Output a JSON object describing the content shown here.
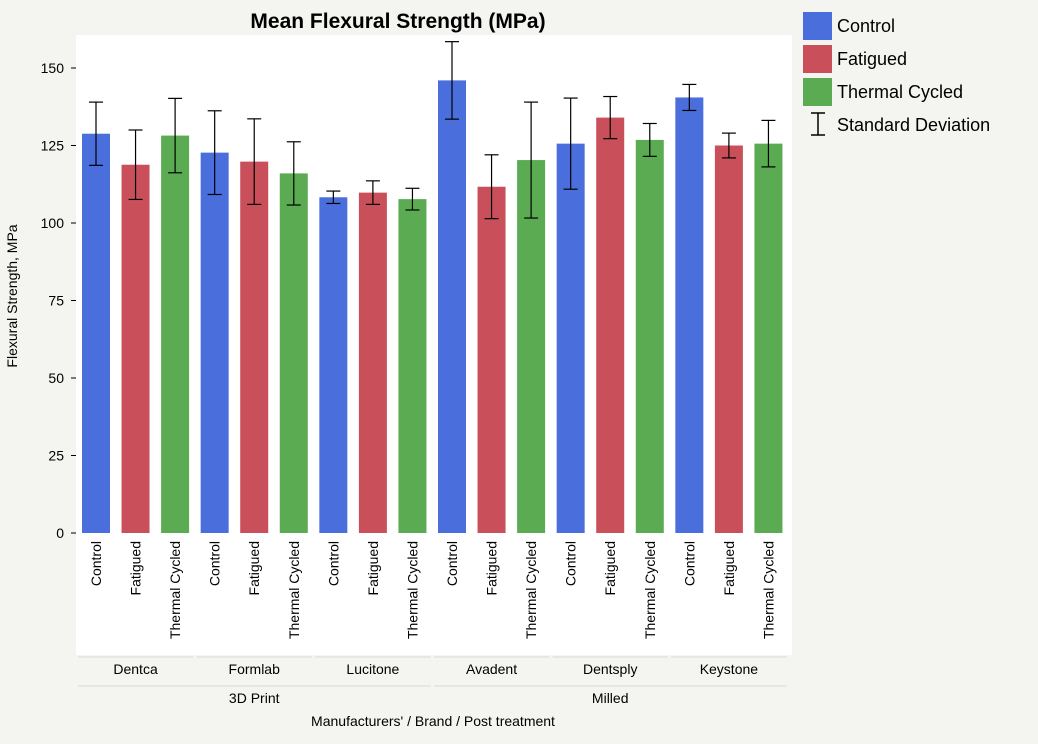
{
  "chart_data": {
    "type": "bar",
    "title": "Mean Flexural Strength (MPa)",
    "ylabel": "Flexural Strength, MPa",
    "xlabel": "Manufacturers' / Brand / Post treatment",
    "ylim": [
      0,
      160
    ],
    "yticks": [
      0,
      25,
      50,
      75,
      100,
      125,
      150
    ],
    "grid": false,
    "legend_position": "right",
    "groups": [
      {
        "name": "3D Print",
        "brands": [
          "Dentca",
          "Formlab",
          "Lucitone"
        ]
      },
      {
        "name": "Milled",
        "brands": [
          "Avadent",
          "Dentsply",
          "Keystone"
        ]
      }
    ],
    "brands": [
      "Dentca",
      "Formlab",
      "Lucitone",
      "Avadent",
      "Dentsply",
      "Keystone"
    ],
    "treatments": [
      "Control",
      "Fatigued",
      "Thermal Cycled"
    ],
    "series": [
      {
        "name": "Control",
        "color": "#4a6fdc",
        "values": [
          128.8,
          122.7,
          108.3,
          146.0,
          125.6,
          140.5
        ],
        "sd": [
          10.2,
          13.5,
          2.0,
          12.5,
          14.7,
          4.2
        ]
      },
      {
        "name": "Fatigued",
        "color": "#c9505a",
        "values": [
          118.8,
          119.8,
          109.8,
          111.7,
          134.0,
          125.0
        ],
        "sd": [
          11.2,
          13.8,
          3.8,
          10.3,
          6.8,
          4.0
        ]
      },
      {
        "name": "Thermal Cycled",
        "color": "#5aab52",
        "values": [
          128.2,
          116.0,
          107.7,
          120.3,
          126.8,
          125.6
        ],
        "sd": [
          12.0,
          10.2,
          3.5,
          18.7,
          5.3,
          7.5
        ]
      }
    ],
    "legend": [
      {
        "label": "Control",
        "color": "#4a6fdc",
        "kind": "swatch"
      },
      {
        "label": "Fatigued",
        "color": "#c9505a",
        "kind": "swatch"
      },
      {
        "label": "Thermal Cycled",
        "color": "#5aab52",
        "kind": "swatch"
      },
      {
        "label": "Standard Deviation",
        "color": "#000000",
        "kind": "errorbar"
      }
    ],
    "background_color": "#f4f4f0",
    "plot_background_color": "#ffffff"
  }
}
